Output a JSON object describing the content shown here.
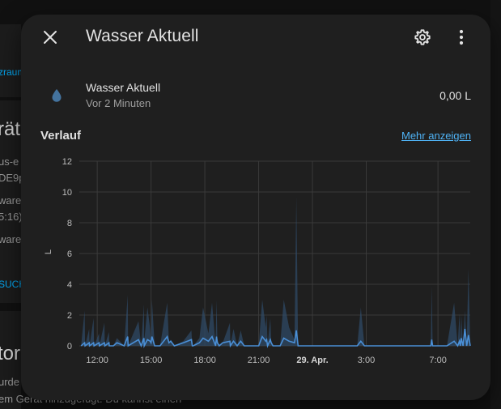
{
  "background": {
    "fragments": [
      "zraum",
      "rät",
      "us-e",
      "DE9p",
      "ware",
      "5:16)",
      "ware",
      "SUCH",
      "tor",
      "urde",
      "em Gerät hinzugefügt. Du kannst einen"
    ]
  },
  "dialog": {
    "title": "Wasser Aktuell",
    "close_icon": "close-icon",
    "settings_icon": "gear-icon",
    "menu_icon": "dots-vertical-icon"
  },
  "entity": {
    "name": "Wasser Aktuell",
    "last_changed": "Vor 2 Minuten",
    "state": "0,00 L",
    "icon": "water-drop-icon",
    "icon_color": "#44739e"
  },
  "history": {
    "title": "Verlauf",
    "more_link": "Mehr anzeigen"
  },
  "chart_data": {
    "type": "area",
    "ylabel": "L",
    "ylim": [
      0,
      12
    ],
    "yticks": [
      0,
      2,
      4,
      6,
      8,
      10,
      12
    ],
    "xlim": [
      11.0,
      32.8
    ],
    "xticks": [
      {
        "v": 12,
        "label": "12:00",
        "bold": false
      },
      {
        "v": 15,
        "label": "15:00",
        "bold": false
      },
      {
        "v": 18,
        "label": "18:00",
        "bold": false
      },
      {
        "v": 21,
        "label": "21:00",
        "bold": false
      },
      {
        "v": 24,
        "label": "29. Apr.",
        "bold": true
      },
      {
        "v": 27,
        "label": "3:00",
        "bold": false
      },
      {
        "v": 31,
        "label": "7:00",
        "bold": false
      }
    ],
    "grid": true,
    "colors": {
      "line": "#4a8fd6",
      "fill": "#2f4a66",
      "grid": "#3a3a3a",
      "axis_text": "#bdbdbd"
    },
    "series": [
      {
        "x": [
          11.1,
          11.3,
          11.32,
          11.55,
          11.57,
          11.8,
          11.82,
          12.1,
          12.12,
          12.4,
          12.42,
          12.65,
          12.67,
          12.9,
          13.1,
          13.5,
          13.7,
          13.72,
          14.3,
          14.45,
          14.6,
          14.62,
          14.8,
          14.95,
          15.0,
          15.05,
          15.2,
          15.5,
          15.9,
          16.0,
          16.1,
          16.3,
          16.8,
          17.25,
          17.3,
          17.35,
          17.7,
          17.9,
          18.2,
          18.4,
          18.6,
          18.65,
          18.7,
          18.8,
          19.0,
          19.4,
          19.42,
          19.6,
          19.8,
          20.0,
          20.2,
          20.25,
          20.5,
          21.0,
          21.2,
          21.4,
          21.45,
          21.5,
          21.65,
          21.7,
          21.8,
          22.2,
          22.4,
          22.7,
          23.0,
          23.1,
          23.2,
          23.5,
          23.7,
          23.9,
          24.0,
          24.2,
          24.5,
          25.0,
          26.0,
          26.5,
          26.7,
          26.9,
          27.2,
          28.0,
          29.0,
          30.0,
          30.6,
          30.65,
          30.7,
          31.0,
          31.5,
          31.9,
          32.1,
          32.2,
          32.25,
          32.3,
          32.4,
          32.5,
          32.6,
          32.7,
          32.8
        ],
        "upper": [
          0,
          2.3,
          0,
          1.1,
          0,
          1.8,
          0,
          0.8,
          0,
          1.5,
          0,
          0.9,
          0,
          0,
          0.5,
          0,
          3.3,
          0,
          1.6,
          0,
          2.7,
          0.3,
          2.5,
          1.1,
          0.2,
          3.0,
          0,
          0,
          2.8,
          0.2,
          0.4,
          0,
          0.3,
          1.0,
          0,
          0,
          0.5,
          2.5,
          0.8,
          2.8,
          0,
          3.0,
          0.4,
          0,
          0.2,
          1.5,
          0,
          1.1,
          0,
          1.0,
          0,
          0,
          0,
          0,
          3.0,
          1.2,
          2.0,
          0,
          1.8,
          0.2,
          0,
          0,
          3.0,
          1.2,
          0.4,
          9.7,
          0,
          0,
          0,
          0,
          0,
          0,
          0,
          0,
          0,
          0,
          2.5,
          0,
          0,
          0,
          0,
          0,
          0,
          3.9,
          0,
          0,
          0,
          2.8,
          0,
          2.1,
          0,
          2.0,
          0,
          2.3,
          0,
          5.0,
          0
        ],
        "line": [
          0,
          0.2,
          0,
          0.2,
          0,
          0.2,
          0,
          0.2,
          0,
          0.2,
          0,
          0.2,
          0,
          0,
          0.2,
          0,
          0.6,
          0,
          0.4,
          0,
          0.5,
          0,
          0.4,
          0.3,
          0.2,
          0.6,
          0,
          0,
          0.6,
          0.2,
          0.3,
          0,
          0.2,
          0.4,
          0,
          0,
          0.2,
          0.5,
          0.3,
          0.6,
          0,
          0.6,
          0.2,
          0,
          0.2,
          0.3,
          0,
          0.3,
          0,
          0.3,
          0,
          0,
          0,
          0,
          0.6,
          0.3,
          0.4,
          0,
          0.4,
          0.2,
          0,
          0,
          0.5,
          0.3,
          0.2,
          1.0,
          0,
          0,
          0,
          0,
          0,
          0,
          0,
          0,
          0,
          0,
          0.3,
          0,
          0,
          0,
          0,
          0,
          0,
          0.4,
          0,
          0,
          0,
          0.3,
          0,
          0.3,
          0,
          0.5,
          0,
          1.1,
          0,
          0.7,
          0
        ]
      }
    ]
  }
}
